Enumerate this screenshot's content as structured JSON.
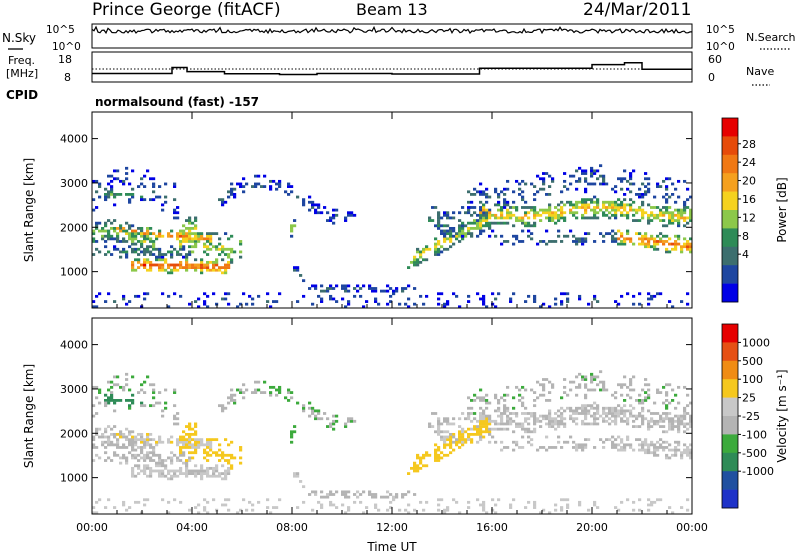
{
  "header": {
    "station": "Prince George (fitACF)",
    "beam": "Beam 13",
    "date": "24/Mar/2011"
  },
  "strip_panel": {
    "left_label": "N.Sky",
    "right_label": "N.Search",
    "left_ticks": [
      "10^5",
      "10^0"
    ],
    "right_ticks": [
      "10^5",
      "10^0"
    ]
  },
  "freq_panel": {
    "left_label_line1": "Freq.",
    "left_label_line2": "[MHz]",
    "right_label": "Nave",
    "left_ticks": [
      "18",
      "8"
    ],
    "right_ticks": [
      "60",
      "0"
    ]
  },
  "cpid": {
    "label": "CPID",
    "value": "normalsound (fast) -157"
  },
  "chart_data": [
    {
      "type": "heatmap",
      "name": "power",
      "ylabel": "Slant Range [km]",
      "xlabel": "",
      "ylim": [
        180,
        4600
      ],
      "yticks": [
        "1000",
        "2000",
        "3000",
        "4000"
      ],
      "colorbar_label": "Power [dB]",
      "colorbar_ticks": [
        "4",
        "8",
        "12",
        "16",
        "20",
        "24",
        "28"
      ],
      "colorbar_colors": [
        "#0000e6",
        "#1e46a0",
        "#3c6e6e",
        "#2e8b57",
        "#8cc84a",
        "#f5d21e",
        "#f5a01e",
        "#f07814",
        "#e64b0a",
        "#e60000"
      ],
      "grid": false
    },
    {
      "type": "heatmap",
      "name": "velocity",
      "ylabel": "Slant Range [km]",
      "xlabel": "Time UT",
      "ylim": [
        180,
        4600
      ],
      "yticks": [
        "1000",
        "2000",
        "3000",
        "4000"
      ],
      "xlim": [
        0,
        24
      ],
      "xticks": [
        "00:00",
        "04:00",
        "08:00",
        "12:00",
        "16:00",
        "20:00",
        "00:00"
      ],
      "colorbar_label": "Velocity [m s⁻¹]",
      "colorbar_ticks": [
        "1000",
        "500",
        "100",
        "25",
        "-25",
        "-100",
        "-500",
        "-1000"
      ],
      "colorbar_colors": [
        "#1e32c8",
        "#2050a0",
        "#2e8b57",
        "#3caa3c",
        "#b4b4b4",
        "#c8c8c8",
        "#f5c81e",
        "#f08c14",
        "#e65014",
        "#e60000"
      ],
      "grid": false
    }
  ]
}
